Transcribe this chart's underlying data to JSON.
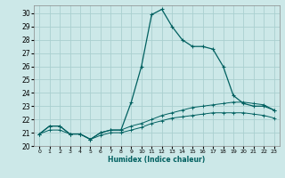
{
  "xlabel": "Humidex (Indice chaleur)",
  "ylabel": "",
  "background_color": "#cce8e8",
  "grid_color": "#aad0d0",
  "line_color": "#006060",
  "xlim": [
    -0.5,
    23.5
  ],
  "ylim": [
    20,
    30.6
  ],
  "yticks": [
    20,
    21,
    22,
    23,
    24,
    25,
    26,
    27,
    28,
    29,
    30
  ],
  "xticks": [
    0,
    1,
    2,
    3,
    4,
    5,
    6,
    7,
    8,
    9,
    10,
    11,
    12,
    13,
    14,
    15,
    16,
    17,
    18,
    19,
    20,
    21,
    22,
    23
  ],
  "series": [
    [
      20.9,
      21.5,
      21.5,
      20.9,
      20.9,
      20.5,
      21.0,
      21.2,
      21.2,
      23.3,
      26.0,
      29.9,
      30.3,
      29.0,
      28.0,
      27.5,
      27.5,
      27.3,
      26.0,
      23.8,
      23.2,
      23.0,
      23.0,
      22.7
    ],
    [
      20.9,
      21.5,
      21.5,
      20.9,
      20.9,
      20.5,
      21.0,
      21.2,
      21.2,
      21.5,
      21.7,
      22.0,
      22.3,
      22.5,
      22.7,
      22.9,
      23.0,
      23.1,
      23.2,
      23.3,
      23.3,
      23.2,
      23.1,
      22.7
    ],
    [
      20.9,
      21.2,
      21.2,
      20.9,
      20.9,
      20.5,
      20.8,
      21.0,
      21.0,
      21.2,
      21.4,
      21.7,
      21.9,
      22.1,
      22.2,
      22.3,
      22.4,
      22.5,
      22.5,
      22.5,
      22.5,
      22.4,
      22.3,
      22.1
    ]
  ]
}
